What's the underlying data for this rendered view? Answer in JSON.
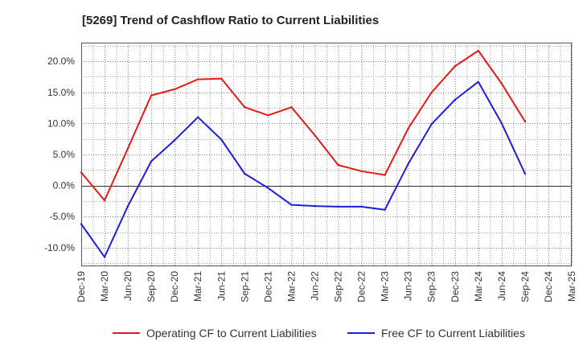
{
  "chart_data": {
    "type": "line",
    "title": "[5269]  Trend of Cashflow Ratio to Current Liabilities",
    "xlabel": "",
    "ylabel": "",
    "categories": [
      "Dec-19",
      "Mar-20",
      "Jun-20",
      "Sep-20",
      "Dec-20",
      "Mar-21",
      "Jun-21",
      "Sep-21",
      "Dec-21",
      "Mar-22",
      "Jun-22",
      "Sep-22",
      "Dec-22",
      "Mar-23",
      "Jun-23",
      "Sep-23",
      "Dec-23",
      "Mar-24",
      "Jun-24",
      "Sep-24",
      "Dec-24",
      "Mar-25"
    ],
    "ylim": [
      -13,
      23
    ],
    "yticks": [
      {
        "value": 20,
        "label": "20.0%"
      },
      {
        "value": 15,
        "label": "15.0%"
      },
      {
        "value": 10,
        "label": "10.0%"
      },
      {
        "value": 5,
        "label": "5.0%"
      },
      {
        "value": 0,
        "label": "0.0%"
      },
      {
        "value": -5,
        "label": "-5.0%"
      },
      {
        "value": -10,
        "label": "-10.0%"
      }
    ],
    "grid": true,
    "legend_position": "bottom",
    "series": [
      {
        "name": "Operating CF to Current Liabilities",
        "color": "#e31a1c",
        "values": [
          2.1,
          -2.4,
          6.0,
          14.5,
          15.5,
          17.1,
          17.2,
          12.6,
          11.3,
          12.6,
          8.1,
          3.3,
          2.3,
          1.7,
          9.2,
          15.0,
          19.2,
          21.7,
          16.4,
          10.3,
          null,
          null
        ]
      },
      {
        "name": "Free CF to Current Liabilities",
        "color": "#1f1fd6",
        "values": [
          -6.2,
          -11.5,
          -3.3,
          3.9,
          7.3,
          11.0,
          7.4,
          1.9,
          -0.4,
          -3.1,
          -3.3,
          -3.4,
          -3.4,
          -3.9,
          3.5,
          9.9,
          13.8,
          16.7,
          10.0,
          1.9,
          null,
          null
        ]
      }
    ]
  }
}
